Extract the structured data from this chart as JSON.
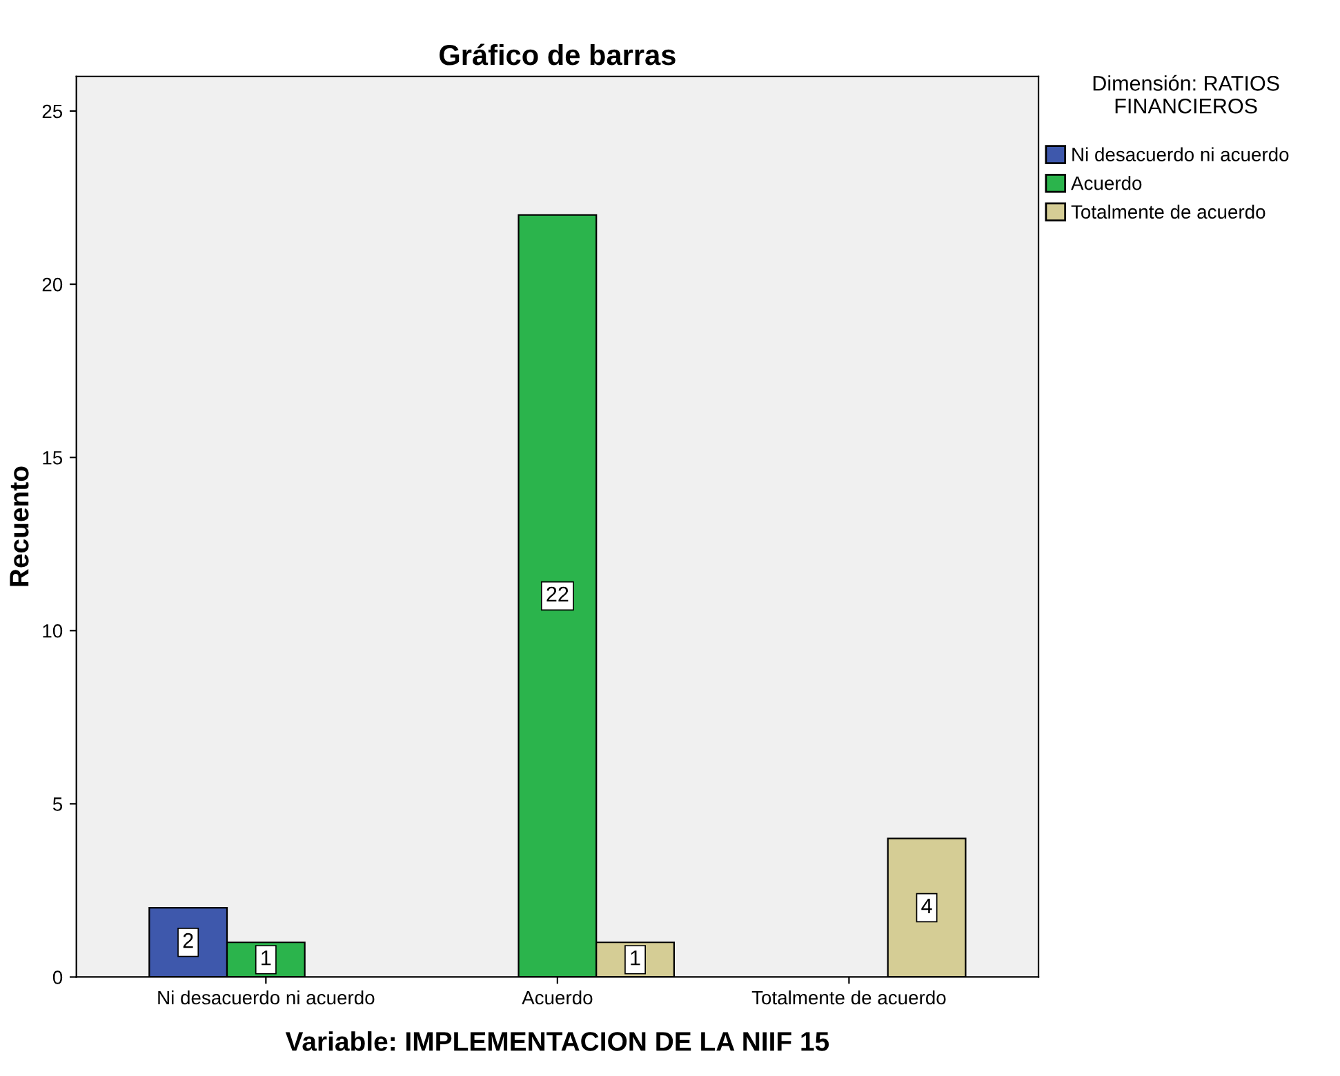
{
  "chart_data": {
    "type": "bar",
    "title": "Gráfico de barras",
    "xlabel": "Variable: IMPLEMENTACION DE LA NIIF 15",
    "ylabel": "Recuento",
    "legend_title": "Dimensión: RATIOS FINANCIEROS",
    "categories": [
      "Ni desacuerdo ni acuerdo",
      "Acuerdo",
      "Totalmente de acuerdo"
    ],
    "series": [
      {
        "name": "Ni desacuerdo ni acuerdo",
        "color": "#3e58ac",
        "values": [
          2,
          null,
          null
        ]
      },
      {
        "name": "Acuerdo",
        "color": "#2bb44c",
        "values": [
          1,
          22,
          null
        ]
      },
      {
        "name": "Totalmente de acuerdo",
        "color": "#d5cd95",
        "values": [
          null,
          1,
          4
        ]
      }
    ],
    "ylim": [
      0,
      26
    ],
    "yticks": [
      0,
      5,
      10,
      15,
      20,
      25
    ],
    "grid": false,
    "legend": "top right",
    "data_labels": true
  }
}
